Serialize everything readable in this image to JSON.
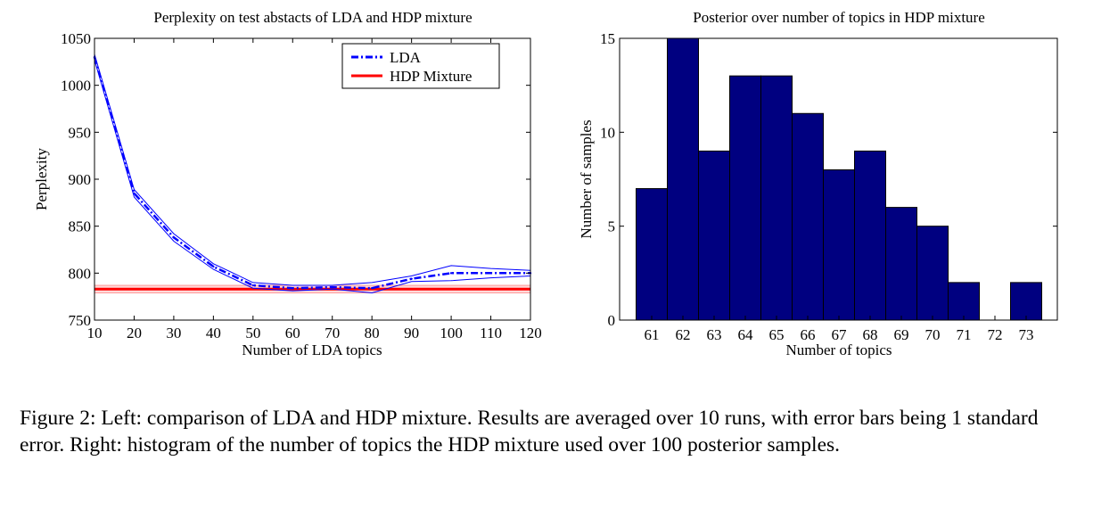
{
  "caption": {
    "label": "Figure 2:",
    "text": "Left: comparison of LDA and HDP mixture. Results are averaged over 10 runs, with error bars being 1 standard error. Right: histogram of the number of topics the HDP mixture used over 100 posterior samples."
  },
  "chart_data": [
    {
      "type": "line",
      "title": "Perplexity on test abstacts of LDA and HDP mixture",
      "xlabel": "Number of LDA topics",
      "ylabel": "Perplexity",
      "xlim": [
        10,
        120
      ],
      "ylim": [
        750,
        1050
      ],
      "xticks": [
        10,
        20,
        30,
        40,
        50,
        60,
        70,
        80,
        90,
        100,
        110,
        120
      ],
      "yticks": [
        750,
        800,
        850,
        900,
        950,
        1000,
        1050
      ],
      "legend_position": "top-right",
      "grid": false,
      "x": [
        10,
        20,
        30,
        40,
        50,
        60,
        70,
        80,
        90,
        100,
        110,
        120
      ],
      "series": [
        {
          "name": "LDA",
          "style": "dash-dot",
          "color": "#0000ff",
          "values": [
            1030,
            885,
            838,
            807,
            787,
            784,
            785,
            784,
            794,
            800,
            800,
            800
          ],
          "upper": [
            1033,
            889,
            842,
            810,
            790,
            787,
            787,
            790,
            797,
            808,
            805,
            803
          ],
          "lower": [
            1027,
            881,
            834,
            804,
            784,
            781,
            783,
            779,
            791,
            792,
            795,
            797
          ]
        },
        {
          "name": "HDP Mixture",
          "style": "solid",
          "color": "#ff0000",
          "constant": 783,
          "upper": 787,
          "lower": 779
        }
      ]
    },
    {
      "type": "bar",
      "title": "Posterior over number of topics in HDP mixture",
      "xlabel": "Number of topics",
      "ylabel": "Number of samples",
      "categories": [
        "61",
        "62",
        "63",
        "64",
        "65",
        "66",
        "67",
        "68",
        "69",
        "70",
        "71",
        "72",
        "73"
      ],
      "values": [
        7,
        15,
        9,
        13,
        13,
        11,
        8,
        9,
        6,
        5,
        2,
        0,
        2
      ],
      "ylim": [
        0,
        15
      ],
      "yticks": [
        0,
        5,
        10,
        15
      ],
      "bar_color": "#000080",
      "grid": false
    }
  ]
}
